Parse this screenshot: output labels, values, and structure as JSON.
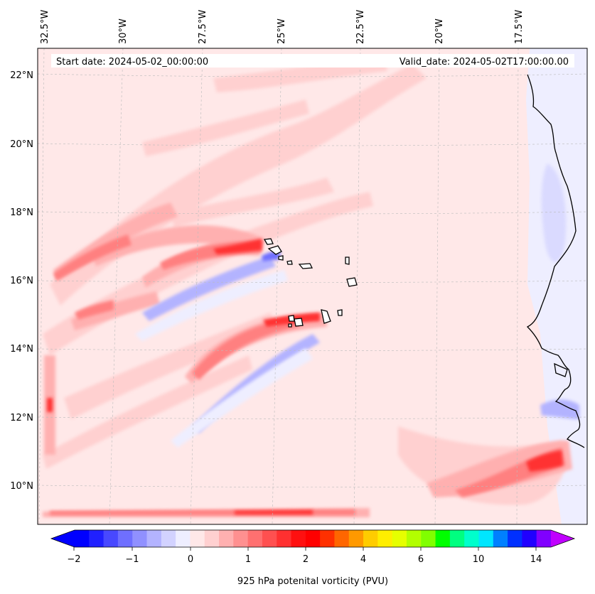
{
  "map": {
    "start_date": "Start date: 2024-05-02_00:00:00",
    "valid_date": "Valid_date: 2024-05-02T17:00:00.00",
    "lon_labels": [
      "32.5°W",
      "30°W",
      "27.5°W",
      "25°W",
      "22.5°W",
      "20°W",
      "17.5°W"
    ],
    "lat_labels": [
      "22°N",
      "20°N",
      "18°N",
      "16°N",
      "14°N",
      "12°N",
      "10°N"
    ],
    "region": "Cape Verde Islands and West African coast (Senegal / Mauritania)"
  },
  "colorbar": {
    "label": "925 hPa potenital vorticity (PVU)",
    "ticks": [
      "−2",
      "−1",
      "0",
      "1",
      "2",
      "4",
      "6",
      "10",
      "14"
    ],
    "colors": [
      "#0000ff",
      "#2020ff",
      "#4848ff",
      "#6f6fff",
      "#9090ff",
      "#b3b3ff",
      "#d2d2ff",
      "#eeeeff",
      "#ffe8e8",
      "#ffd0d0",
      "#ffb0b0",
      "#ff9090",
      "#ff7070",
      "#ff5050",
      "#ff3030",
      "#ff1010",
      "#ff0000",
      "#ff3000",
      "#ff6600",
      "#ff9900",
      "#ffcc00",
      "#ffee00",
      "#e6ff00",
      "#b3ff00",
      "#80ff00",
      "#00ff00",
      "#00ff80",
      "#00ffcc",
      "#00e6ff",
      "#0080ff",
      "#0030ff",
      "#2000ff",
      "#8000ff"
    ],
    "extend_low_color": "#0000ff",
    "extend_high_color": "#c000ff"
  }
}
